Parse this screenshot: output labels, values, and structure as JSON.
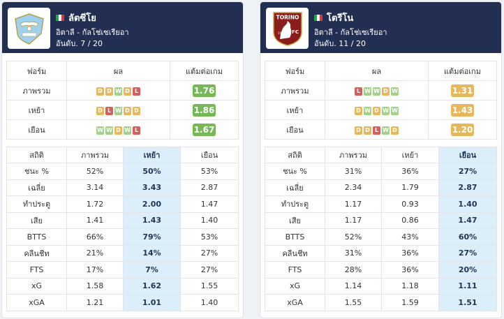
{
  "colors": {
    "header_bg": "#232f52",
    "highlight_bg": "#dbeefa",
    "win": "#a3d18a",
    "draw": "#e7b75e",
    "loss": "#d45f5b",
    "ppg_green": "#76b857",
    "ppg_orange": "#e7b75e"
  },
  "teams": [
    {
      "name": "ลัตซีโย",
      "country_league": "อิตาลี - กัลโช่เซเรียอา",
      "rank": "อันดับ. 7 / 20",
      "logo_icon": "lazio-crest-icon",
      "form_header": {
        "col1": "ฟอร์ม",
        "col2": "ผล",
        "col3": "แต้มต่อเกม"
      },
      "form_rows": [
        {
          "label": "ภาพรวม",
          "results": [
            "D",
            "D",
            "W",
            "D",
            "L"
          ],
          "ppg": "1.76",
          "ppg_color": "green"
        },
        {
          "label": "เหย้า",
          "results": [
            "D",
            "L",
            "W",
            "D",
            "D"
          ],
          "ppg": "1.86",
          "ppg_color": "green"
        },
        {
          "label": "เยือน",
          "results": [
            "W",
            "W",
            "D",
            "W",
            "L"
          ],
          "ppg": "1.67",
          "ppg_color": "green"
        }
      ],
      "stats_header": [
        "สถิติ",
        "ภาพรวม",
        "เหย้า",
        "เยือน"
      ],
      "highlight_col": 2,
      "stats": [
        [
          "ชนะ %",
          "52%",
          "50%",
          "53%"
        ],
        [
          "เฉลี่ย",
          "3.14",
          "3.43",
          "2.87"
        ],
        [
          "ทำประตู",
          "1.72",
          "2.00",
          "1.47"
        ],
        [
          "เสีย",
          "1.41",
          "1.43",
          "1.40"
        ],
        [
          "BTTS",
          "66%",
          "79%",
          "53%"
        ],
        [
          "คลีนชีท",
          "21%",
          "14%",
          "27%"
        ],
        [
          "FTS",
          "17%",
          "7%",
          "27%"
        ],
        [
          "xG",
          "1.58",
          "1.62",
          "1.55"
        ],
        [
          "xGA",
          "1.21",
          "1.01",
          "1.40"
        ]
      ]
    },
    {
      "name": "โตรีโน",
      "country_league": "อิตาลี - กัลโช่เซเรียอา",
      "rank": "อันดับ. 11 / 20",
      "logo_icon": "torino-crest-icon",
      "logo_text": [
        "TORINO",
        "FC",
        "1906"
      ],
      "form_header": {
        "col1": "ฟอร์ม",
        "col2": "ผล",
        "col3": "แต้มต่อเกม"
      },
      "form_rows": [
        {
          "label": "ภาพรวม",
          "results": [
            "L",
            "W",
            "W",
            "D",
            "W"
          ],
          "ppg": "1.31",
          "ppg_color": "orange"
        },
        {
          "label": "เหย้า",
          "results": [
            "D",
            "W",
            "D",
            "W",
            "W"
          ],
          "ppg": "1.43",
          "ppg_color": "orange"
        },
        {
          "label": "เยือน",
          "results": [
            "D",
            "D",
            "L",
            "W",
            "D"
          ],
          "ppg": "1.20",
          "ppg_color": "orange"
        }
      ],
      "stats_header": [
        "สถิติ",
        "ภาพรวม",
        "เหย้า",
        "เยือน"
      ],
      "highlight_col": 3,
      "stats": [
        [
          "ชนะ %",
          "31%",
          "36%",
          "27%"
        ],
        [
          "เฉลี่ย",
          "2.34",
          "1.79",
          "2.87"
        ],
        [
          "ทำประตู",
          "1.17",
          "0.93",
          "1.40"
        ],
        [
          "เสีย",
          "1.17",
          "0.86",
          "1.47"
        ],
        [
          "BTTS",
          "52%",
          "43%",
          "60%"
        ],
        [
          "คลีนชีท",
          "31%",
          "36%",
          "27%"
        ],
        [
          "FTS",
          "28%",
          "36%",
          "20%"
        ],
        [
          "xG",
          "1.14",
          "1.18",
          "1.11"
        ],
        [
          "xGA",
          "1.55",
          "1.59",
          "1.51"
        ]
      ]
    }
  ]
}
